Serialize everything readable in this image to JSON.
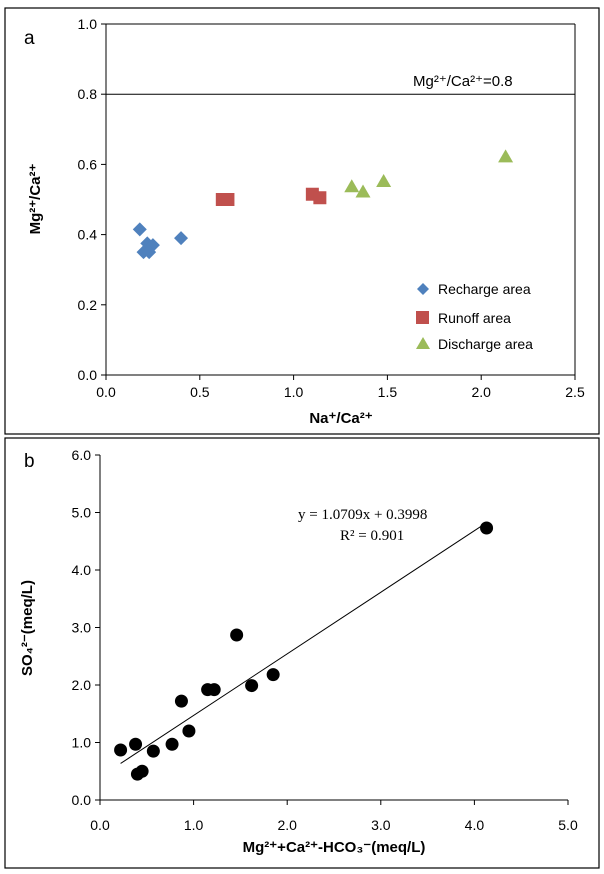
{
  "colors": {
    "recharge": "#4f81bd",
    "runoff": "#c0504d",
    "discharge": "#9bbb59",
    "points": "#000000",
    "line": "#000000"
  },
  "chart_data": [
    {
      "panel_label": "a",
      "type": "scatter",
      "xlabel": "Na⁺/Ca²⁺",
      "ylabel": "Mg²⁺/Ca²⁺",
      "xlim": [
        0,
        2.5
      ],
      "ylim": [
        0,
        1.0
      ],
      "xticks": [
        "0.0",
        "0.5",
        "1.0",
        "1.5",
        "2.0",
        "2.5"
      ],
      "yticks": [
        "0.0",
        "0.2",
        "0.4",
        "0.6",
        "0.8",
        "1.0"
      ],
      "reference_line": {
        "y": 0.8,
        "label": "Mg²⁺/Ca²⁺=0.8"
      },
      "legend_position": "bottom-right",
      "series": [
        {
          "name": "Recharge area",
          "marker": "diamond",
          "points": [
            [
              0.18,
              0.415
            ],
            [
              0.22,
              0.375
            ],
            [
              0.25,
              0.37
            ],
            [
              0.2,
              0.35
            ],
            [
              0.23,
              0.35
            ],
            [
              0.4,
              0.39
            ]
          ]
        },
        {
          "name": "Runoff area",
          "marker": "square",
          "points": [
            [
              0.62,
              0.5
            ],
            [
              0.65,
              0.5
            ],
            [
              1.1,
              0.515
            ],
            [
              1.14,
              0.505
            ]
          ]
        },
        {
          "name": "Discharge area",
          "marker": "triangle",
          "points": [
            [
              1.31,
              0.535
            ],
            [
              1.37,
              0.52
            ],
            [
              1.48,
              0.55
            ],
            [
              2.13,
              0.62
            ]
          ]
        }
      ]
    },
    {
      "panel_label": "b",
      "type": "scatter",
      "xlabel": "Mg²⁺+Ca²⁺-HCO₃⁻(meq/L)",
      "ylabel": "SO₄²⁻(meq/L)",
      "xlim": [
        0,
        5.0
      ],
      "ylim": [
        0,
        6.0
      ],
      "xticks": [
        "0.0",
        "1.0",
        "2.0",
        "3.0",
        "4.0",
        "5.0"
      ],
      "yticks": [
        "0.0",
        "1.0",
        "2.0",
        "3.0",
        "4.0",
        "5.0",
        "6.0"
      ],
      "trendline": {
        "slope": 1.0709,
        "intercept": 0.3998,
        "x_range": [
          0.22,
          4.13
        ],
        "equation": "y = 1.0709x + 0.3998",
        "r2": "R² = 0.901"
      },
      "series": [
        {
          "marker": "circle",
          "points": [
            [
              0.22,
              0.87
            ],
            [
              0.38,
              0.97
            ],
            [
              0.4,
              0.45
            ],
            [
              0.45,
              0.5
            ],
            [
              0.57,
              0.85
            ],
            [
              0.77,
              0.97
            ],
            [
              0.87,
              1.72
            ],
            [
              0.95,
              1.2
            ],
            [
              1.15,
              1.92
            ],
            [
              1.22,
              1.92
            ],
            [
              1.46,
              2.87
            ],
            [
              1.62,
              1.99
            ],
            [
              1.85,
              2.18
            ],
            [
              4.13,
              4.73
            ]
          ]
        }
      ]
    }
  ]
}
